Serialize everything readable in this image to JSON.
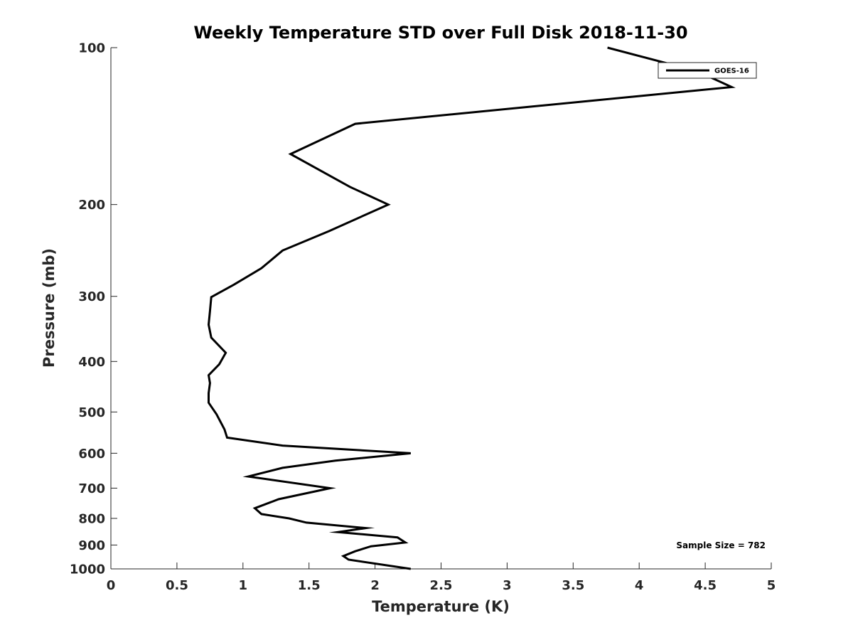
{
  "chart_data": {
    "type": "line",
    "title": "Weekly Temperature STD over Full Disk 2018-11-30",
    "xlabel": "Temperature (K)",
    "ylabel": "Pressure (mb)",
    "xlim": [
      0,
      5
    ],
    "ylim": [
      100,
      1000
    ],
    "y_scale": "log",
    "y_reversed": true,
    "grid": false,
    "x_ticks": [
      0,
      0.5,
      1,
      1.5,
      2,
      2.5,
      3,
      3.5,
      4,
      4.5,
      5
    ],
    "x_tick_labels": [
      "0",
      "0.5",
      "1",
      "1.5",
      "2",
      "2.5",
      "3",
      "3.5",
      "4",
      "4.5",
      "5"
    ],
    "y_ticks": [
      100,
      200,
      300,
      400,
      500,
      600,
      700,
      800,
      900,
      1000
    ],
    "y_tick_labels": [
      "100",
      "200",
      "300",
      "400",
      "500",
      "600",
      "700",
      "800",
      "900",
      "1000"
    ],
    "legend": {
      "position": "top-right",
      "entries": [
        "GOES-16"
      ]
    },
    "annotation": "Sample Size = 782",
    "series": [
      {
        "name": "GOES-16",
        "color": "#000000",
        "x": [
          3.76,
          4.44,
          4.7,
          1.85,
          1.36,
          1.81,
          2.1,
          1.65,
          1.3,
          1.14,
          0.93,
          0.76,
          0.75,
          0.74,
          0.76,
          0.87,
          0.82,
          0.74,
          0.75,
          0.74,
          0.74,
          0.8,
          0.86,
          0.88,
          1.3,
          2.27,
          1.7,
          1.3,
          1.04,
          1.66,
          1.27,
          1.09,
          1.14,
          1.35,
          1.48,
          1.93,
          1.72,
          2.17,
          2.23,
          1.97,
          1.85,
          1.76,
          1.8,
          2.27
        ],
        "y": [
          100,
          111,
          119,
          140,
          160,
          185,
          200,
          225,
          245,
          265,
          285,
          301,
          320,
          340,
          360,
          385,
          405,
          425,
          440,
          460,
          480,
          505,
          540,
          560,
          580,
          600,
          620,
          640,
          665,
          700,
          735,
          765,
          785,
          800,
          815,
          835,
          850,
          870,
          890,
          905,
          925,
          945,
          960,
          1000
        ]
      }
    ]
  }
}
